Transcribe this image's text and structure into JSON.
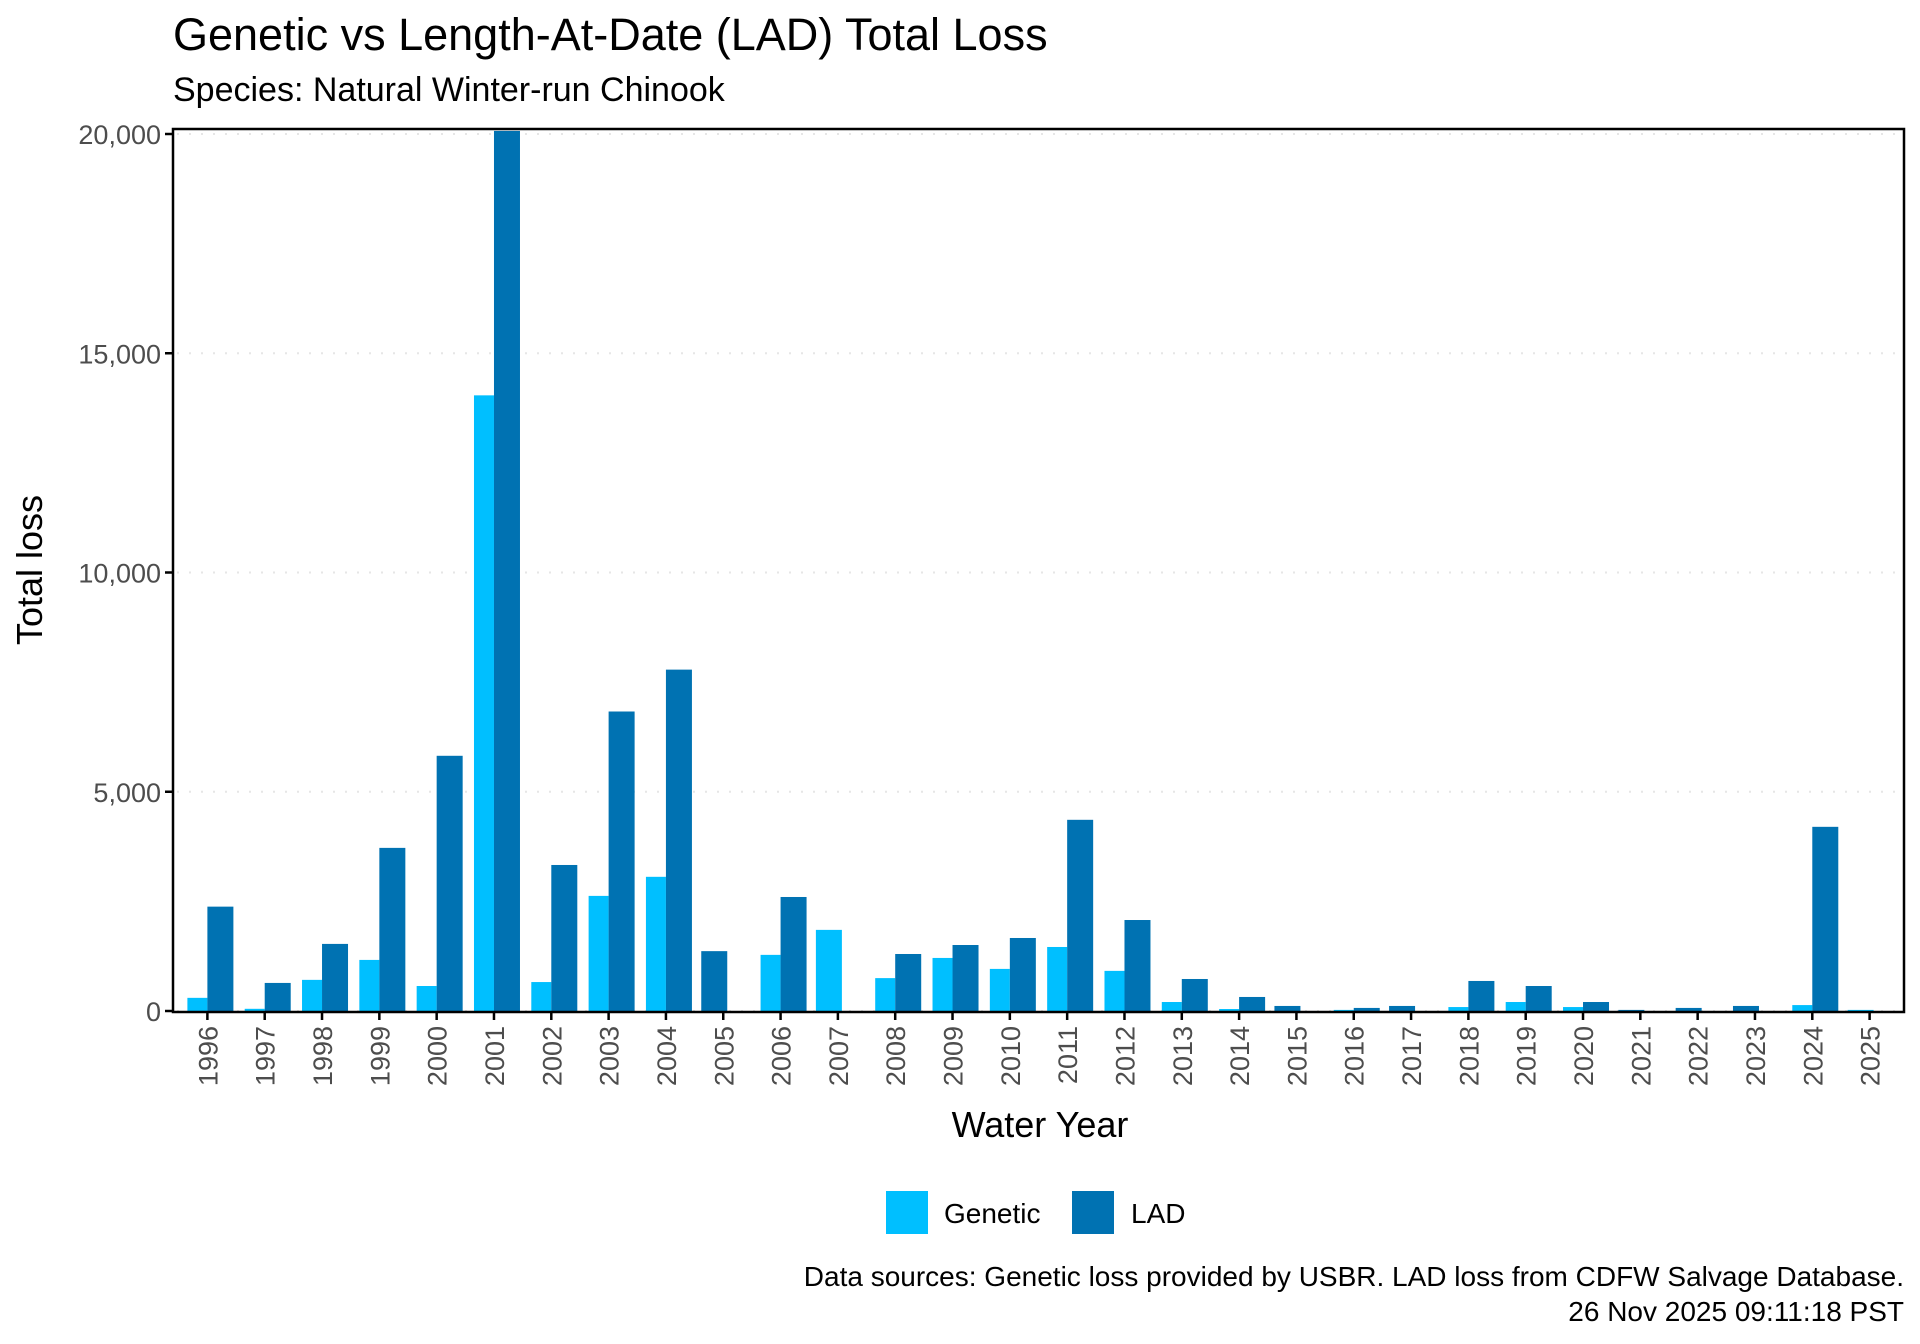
{
  "chart_data": {
    "type": "bar",
    "title": "Genetic vs Length-At-Date (LAD) Total Loss",
    "subtitle": "Species: Natural Winter-run Chinook",
    "xlabel": "Water Year",
    "ylabel": "Total loss",
    "ylim": [
      0,
      20000
    ],
    "yticks": [
      0,
      5000,
      10000,
      15000,
      20000
    ],
    "ytick_labels": [
      "0",
      "5,000",
      "10,000",
      "15,000",
      "20,000"
    ],
    "grid": "horizontal-major-dotted",
    "legend_position": "bottom",
    "categories": [
      "1996",
      "1997",
      "1998",
      "1999",
      "2000",
      "2001",
      "2002",
      "2003",
      "2004",
      "2005",
      "2006",
      "2007",
      "2008",
      "2009",
      "2010",
      "2011",
      "2012",
      "2013",
      "2014",
      "2015",
      "2016",
      "2017",
      "2018",
      "2019",
      "2020",
      "2021",
      "2022",
      "2023",
      "2024",
      "2025"
    ],
    "series": [
      {
        "name": "Genetic",
        "color": "#00BFFF",
        "values": [
          300,
          50,
          710,
          1165,
          570,
          14040,
          660,
          2625,
          3060,
          null,
          1280,
          1850,
          750,
          1210,
          960,
          1460,
          915,
          205,
          45,
          null,
          25,
          null,
          90,
          205,
          90,
          null,
          null,
          null,
          135,
          25
        ]
      },
      {
        "name": "LAD",
        "color": "#0072B2",
        "values": [
          2380,
          640,
          1530,
          3720,
          5820,
          20070,
          3330,
          6830,
          7785,
          1365,
          2600,
          null,
          1300,
          1505,
          1665,
          4360,
          2075,
          730,
          320,
          115,
          70,
          115,
          685,
          570,
          205,
          25,
          70,
          115,
          4200,
          null
        ]
      }
    ],
    "caption_lines": [
      "Data sources: Genetic loss provided by USBR. LAD loss from CDFW Salvage Database.",
      "26 Nov 2025 09:11:18 PST"
    ]
  }
}
